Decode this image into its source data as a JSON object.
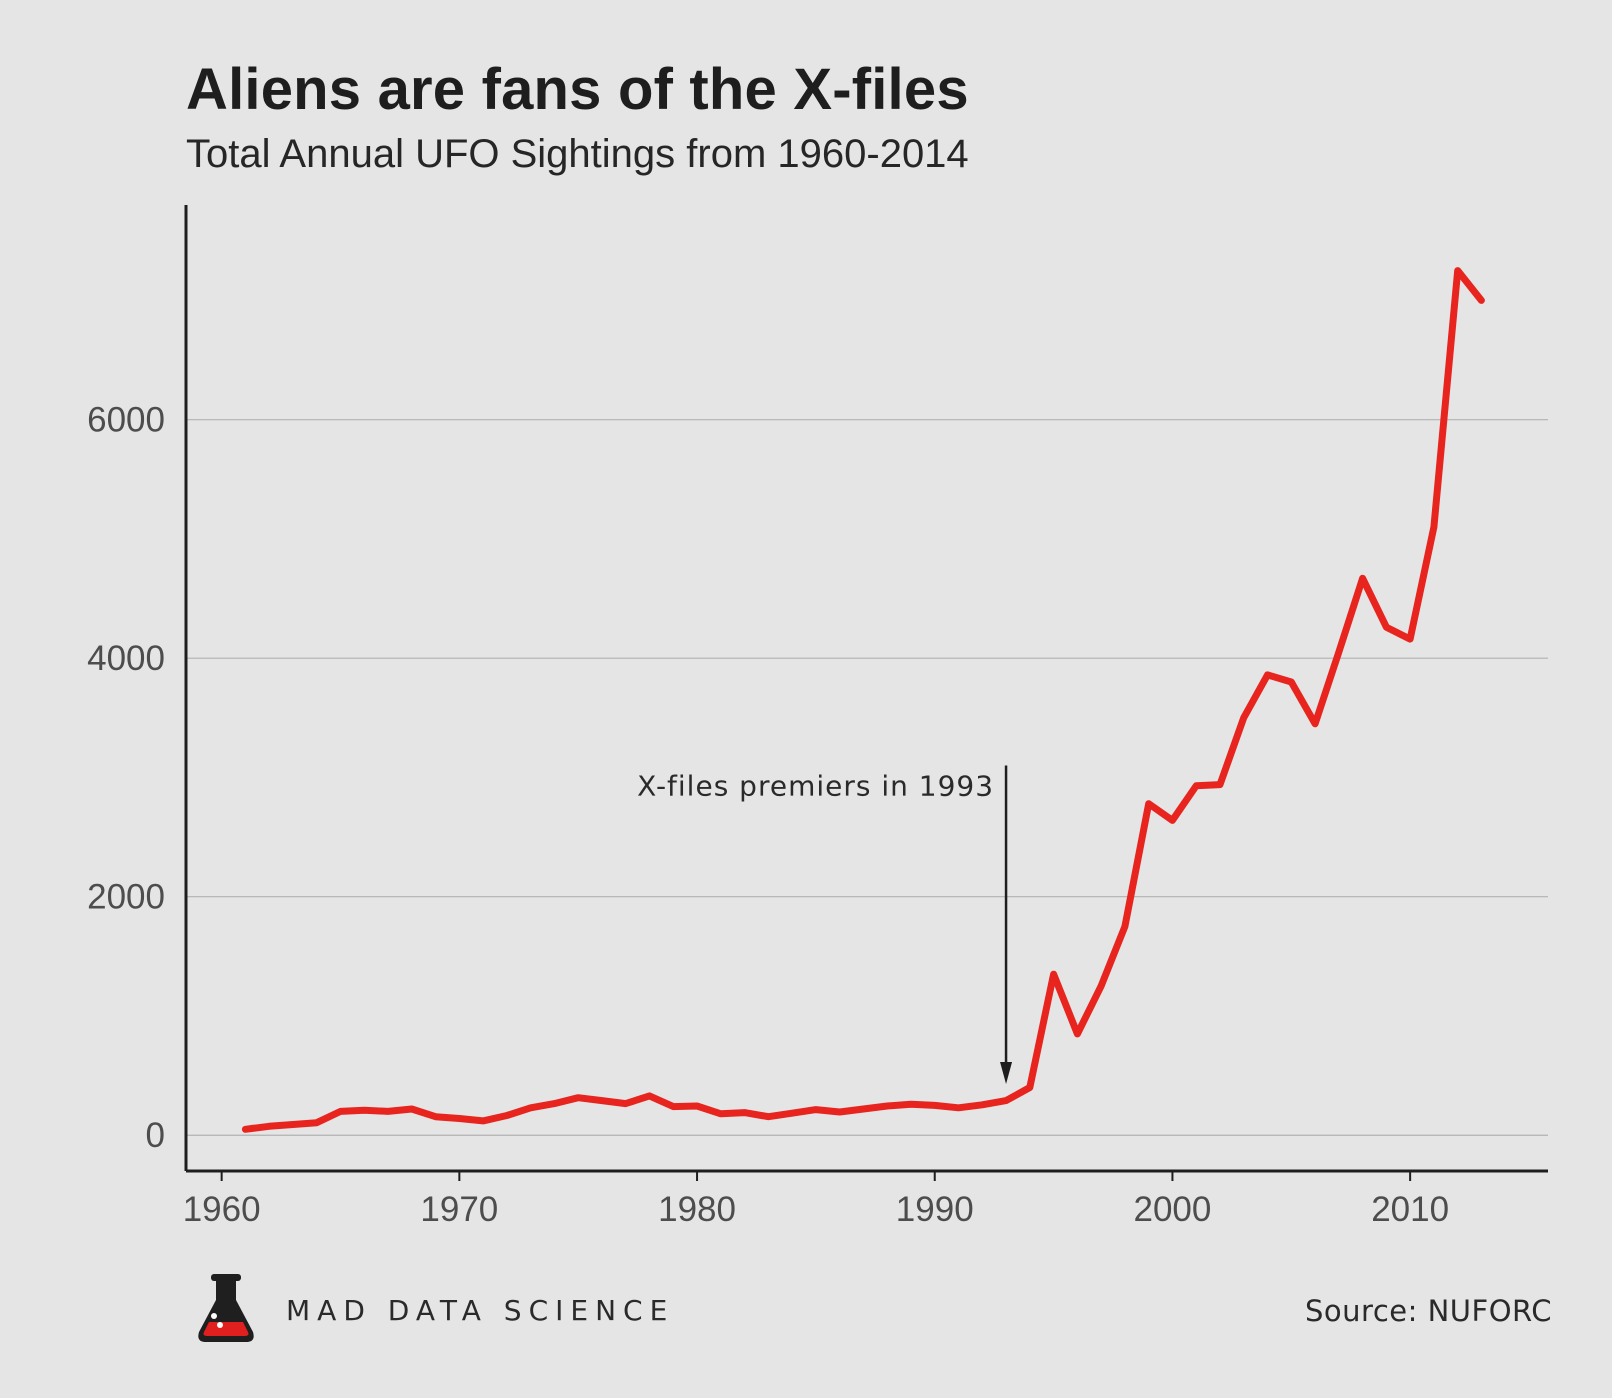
{
  "chart_data": {
    "type": "line",
    "title": "Aliens are fans of the X-files",
    "subtitle": "Total Annual UFO Sightings from 1960-2014",
    "xlabel": "",
    "ylabel": "",
    "xlim": [
      1958.5,
      2015.8
    ],
    "ylim": [
      -300,
      7800
    ],
    "xticks": [
      1960,
      1970,
      1980,
      1990,
      2000,
      2010
    ],
    "yticks": [
      0,
      2000,
      4000,
      6000
    ],
    "grid": "horizontal",
    "series": [
      {
        "color": "#e8241f",
        "x": [
          1961,
          1962,
          1963,
          1964,
          1965,
          1966,
          1967,
          1968,
          1969,
          1970,
          1971,
          1972,
          1973,
          1974,
          1975,
          1976,
          1977,
          1978,
          1979,
          1980,
          1981,
          1982,
          1983,
          1984,
          1985,
          1986,
          1987,
          1988,
          1989,
          1990,
          1991,
          1992,
          1993,
          1994,
          1995,
          1996,
          1997,
          1998,
          1999,
          2000,
          2001,
          2002,
          2003,
          2004,
          2005,
          2006,
          2007,
          2008,
          2009,
          2010,
          2011,
          2012,
          2013
        ],
        "y": [
          50,
          75,
          90,
          105,
          200,
          210,
          200,
          220,
          155,
          140,
          120,
          165,
          230,
          265,
          315,
          290,
          265,
          330,
          240,
          245,
          180,
          190,
          155,
          185,
          215,
          195,
          220,
          245,
          260,
          250,
          230,
          255,
          290,
          400,
          1350,
          850,
          1250,
          1750,
          2780,
          2640,
          2930,
          2940,
          3500,
          3860,
          3800,
          3450,
          4050,
          4670,
          4260,
          4160,
          5100,
          7250,
          7000
        ]
      }
    ],
    "annotations": [
      {
        "text": "X-files premiers in 1993",
        "x": 1993,
        "y_from": 3100,
        "y_to": 430
      }
    ]
  },
  "footer": {
    "brand": "MAD DATA SCIENCE",
    "source": "Source: NUFORC"
  },
  "colors": {
    "background": "#e5e5e5",
    "line": "#e8241f",
    "axis": "#1e1e1e",
    "grid": "#b2b2b2",
    "flask_liquid": "#e01f1f"
  },
  "icons": {
    "brand_logo": "flask-icon"
  }
}
